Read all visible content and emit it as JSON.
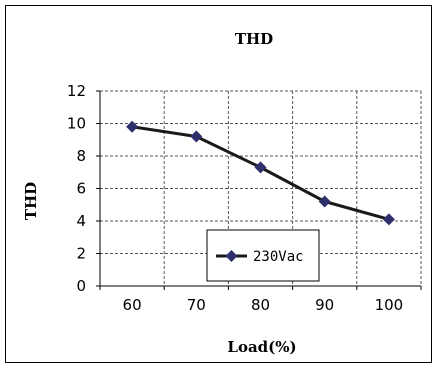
{
  "chart_data": {
    "type": "line",
    "title": "THD",
    "xlabel": "Load(%)",
    "ylabel": "THD",
    "categories": [
      "60",
      "70",
      "80",
      "90",
      "100"
    ],
    "x": [
      60,
      70,
      80,
      90,
      100
    ],
    "ylim": [
      0,
      12
    ],
    "yticks": [
      "0",
      "2",
      "4",
      "6",
      "8",
      "10",
      "12"
    ],
    "grid": true,
    "legend_position": "bottom-center",
    "series": [
      {
        "name": "230Vac",
        "values": [
          9.8,
          9.2,
          7.3,
          5.2,
          4.1
        ],
        "color": "#1a1a1a",
        "marker_color": "#2f2f6b",
        "marker": "diamond"
      }
    ]
  }
}
